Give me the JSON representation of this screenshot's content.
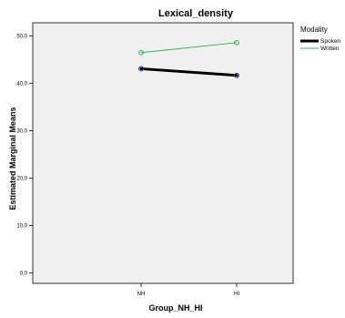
{
  "chart_data": {
    "type": "line",
    "title": "Lexical_density",
    "xlabel": "Group_NH_HI",
    "ylabel": "Estimated Marginal Means",
    "categories": [
      "NH",
      "HI"
    ],
    "series": [
      {
        "name": "Spoken",
        "values": [
          43.1,
          41.7
        ],
        "color": "#000000",
        "marker_color": "#1f3c8a",
        "line_weight": "thick"
      },
      {
        "name": "Written",
        "values": [
          46.5,
          48.6
        ],
        "color": "#2db34a",
        "marker_color": "#2db34a",
        "line_weight": "thin"
      }
    ],
    "yticks": [
      0,
      10,
      20,
      30,
      40,
      50
    ],
    "ytick_labels": [
      "0,0",
      "10,0",
      "20,0",
      "30,0",
      "40,0",
      "50,0"
    ],
    "ylim": [
      -2.2,
      52.8
    ],
    "grid": false,
    "legend": {
      "title": "Modality",
      "placement": "right"
    },
    "background_color": "#f0f0f0"
  }
}
